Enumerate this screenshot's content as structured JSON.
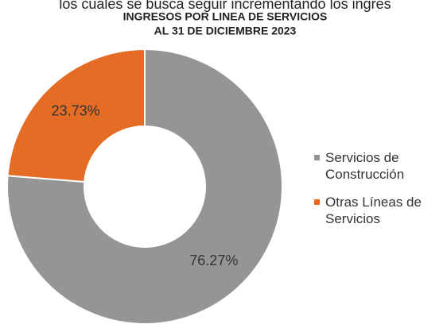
{
  "header": {
    "text": "los cuales se busca seguir incrementando los ingres"
  },
  "chart_data": {
    "type": "donut",
    "title": "INGRESOS POR LINEA DE  SERVICIOS",
    "subtitle": "AL 31 DE DICIEMBRE 2023",
    "categories": [
      "Servicios de Construcción",
      "Otras Líneas de Servicios"
    ],
    "values": [
      76.27,
      23.73
    ],
    "value_labels": [
      "76.27%",
      "23.73%"
    ],
    "colors": [
      "#959595",
      "#e46c24"
    ],
    "legend": "right"
  }
}
